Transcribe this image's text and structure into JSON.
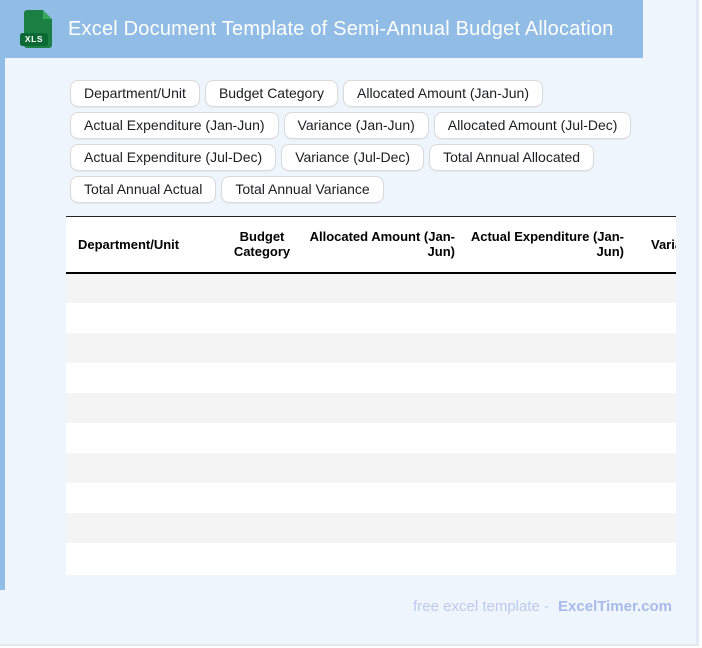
{
  "colors": {
    "header_bar": "#90bce5",
    "page_bg": "#eff5fd",
    "icon_body_green": "#1c8045",
    "icon_fold_green": "#35a85d",
    "icon_label_green": "#0b6a33",
    "chip_border": "#d8d9db",
    "row_stripe": "#f4f4f5",
    "footer_text": "#bdc9ee",
    "footer_brand": "#a9b9ea"
  },
  "header": {
    "title": "Excel Document Template of Semi-Annual Budget Allocation",
    "file_badge": "XLS"
  },
  "chip_rows": [
    [
      "Department/Unit",
      "Budget Category",
      "Allocated Amount (Jan-Jun)"
    ],
    [
      "Actual Expenditure (Jan-Jun)",
      "Variance (Jan-Jun)",
      "Allocated Amount (Jul-Dec)"
    ],
    [
      "Actual Expenditure (Jul-Dec)",
      "Variance (Jul-Dec)",
      "Total Annual Allocated"
    ],
    [
      "Total Annual Actual",
      "Total Annual Variance"
    ]
  ],
  "table": {
    "columns": [
      "Department/Unit",
      "Budget Category",
      "Allocated Amount (Jan-Jun)",
      "Actual Expenditure (Jan-Jun)",
      "Variance (Jan-Jun)"
    ],
    "empty_row_count": 10
  },
  "footer": {
    "prefix": "free excel template -",
    "brand": "ExcelTimer.com"
  }
}
